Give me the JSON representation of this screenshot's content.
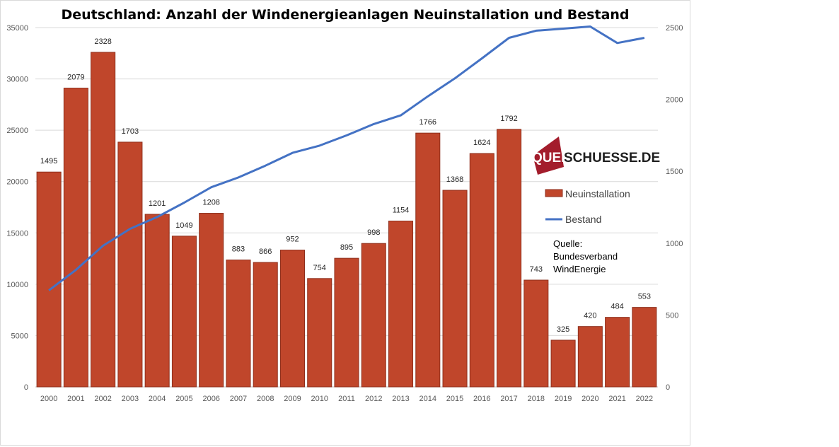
{
  "chart_data": {
    "type": "bar",
    "title": "Deutschland: Anzahl der Windenergieanlagen Neuinstallation und Bestand",
    "categories": [
      "2000",
      "2001",
      "2002",
      "2003",
      "2004",
      "2005",
      "2006",
      "2007",
      "2008",
      "2009",
      "2010",
      "2011",
      "2012",
      "2013",
      "2014",
      "2015",
      "2016",
      "2017",
      "2018",
      "2019",
      "2020",
      "2021",
      "2022"
    ],
    "series": [
      {
        "name": "Neuinstallation",
        "kind": "bar",
        "axis": "right",
        "color": "#c0462b",
        "values": [
          1495,
          2079,
          2328,
          1703,
          1201,
          1049,
          1208,
          883,
          866,
          952,
          754,
          895,
          998,
          1154,
          1766,
          1368,
          1624,
          1792,
          743,
          325,
          420,
          484,
          553
        ]
      },
      {
        "name": "Bestand",
        "kind": "line",
        "axis": "left",
        "color": "#4472c4",
        "values": [
          9400,
          11400,
          13750,
          15400,
          16550,
          17950,
          19450,
          20400,
          21550,
          22800,
          23500,
          24500,
          25600,
          26450,
          28300,
          30050,
          32000,
          34000,
          34700,
          34900,
          35100,
          33500,
          34000
        ]
      }
    ],
    "left_axis": {
      "min": 0,
      "max": 35000,
      "ticks": [
        "0",
        "5000",
        "10000",
        "15000",
        "20000",
        "25000",
        "30000",
        "35000"
      ]
    },
    "right_axis": {
      "min": 0,
      "max": 2500,
      "ticks": [
        "0",
        "500",
        "1000",
        "1500",
        "2000",
        "2500"
      ]
    },
    "grid": true,
    "legend": {
      "position": "right",
      "entries": [
        "Neuinstallation",
        "Bestand"
      ]
    },
    "source_note": [
      "Quelle:",
      "Bundesverband",
      "WindEnergie"
    ],
    "logo": {
      "box_text": "QUER",
      "text": "SCHUESSE.DE",
      "color": "#a31d2c"
    }
  }
}
